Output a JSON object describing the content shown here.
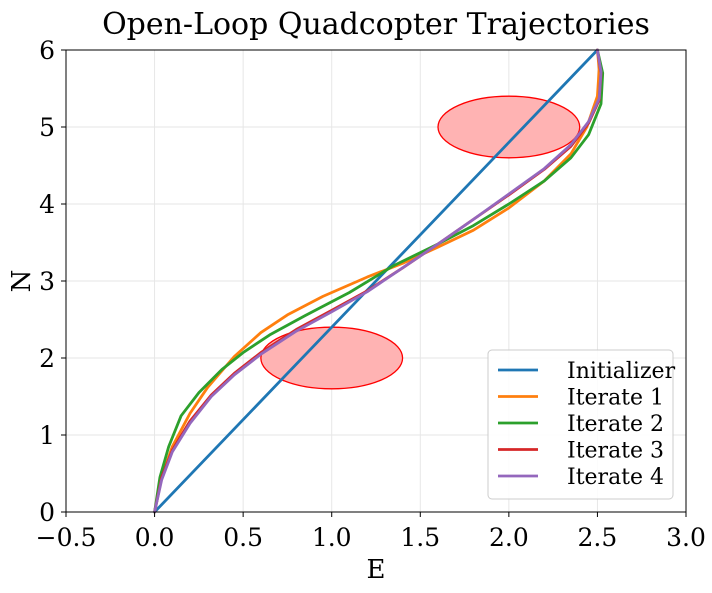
{
  "chart_data": {
    "type": "line",
    "title": "Open-Loop Quadcopter Trajectories",
    "xlabel": "E",
    "ylabel": "N",
    "xlim": [
      -0.5,
      3.0
    ],
    "ylim": [
      0,
      6
    ],
    "xticks": [
      "−0.5",
      "0.0",
      "0.5",
      "1.0",
      "1.5",
      "2.0",
      "2.5",
      "3.0"
    ],
    "xtick_values": [
      -0.5,
      0.0,
      0.5,
      1.0,
      1.5,
      2.0,
      2.5,
      3.0
    ],
    "yticks": [
      "0",
      "1",
      "2",
      "3",
      "4",
      "5",
      "6"
    ],
    "ytick_values": [
      0,
      1,
      2,
      3,
      4,
      5,
      6
    ],
    "grid": true,
    "legend_position": "lower-right",
    "obstacles": [
      {
        "cx": 1.0,
        "cy": 2.0,
        "rx": 0.4,
        "ry": 0.4,
        "fill": "#ffb3b3",
        "stroke": "#ff0000"
      },
      {
        "cx": 2.0,
        "cy": 5.0,
        "rx": 0.4,
        "ry": 0.4,
        "fill": "#ffb3b3",
        "stroke": "#ff0000"
      }
    ],
    "series": [
      {
        "name": "Initializer",
        "color": "#1f77b4",
        "x": [
          0.0,
          2.5
        ],
        "y": [
          0.0,
          6.0
        ]
      },
      {
        "name": "Iterate 1",
        "color": "#ff7f0e",
        "x": [
          0.0,
          0.04,
          0.1,
          0.2,
          0.3,
          0.45,
          0.6,
          0.75,
          0.95,
          1.2,
          1.4,
          1.6,
          1.8,
          2.0,
          2.2,
          2.35,
          2.44,
          2.5,
          2.51,
          2.5
        ],
        "y": [
          0.0,
          0.45,
          0.85,
          1.28,
          1.62,
          2.02,
          2.33,
          2.56,
          2.8,
          3.05,
          3.23,
          3.44,
          3.66,
          3.95,
          4.3,
          4.65,
          5.0,
          5.4,
          5.75,
          6.0
        ]
      },
      {
        "name": "Iterate 2",
        "color": "#2ca02c",
        "x": [
          0.0,
          0.03,
          0.08,
          0.15,
          0.25,
          0.38,
          0.5,
          0.65,
          0.85,
          1.1,
          1.35,
          1.6,
          1.8,
          2.0,
          2.2,
          2.35,
          2.45,
          2.52,
          2.53,
          2.5
        ],
        "y": [
          0.0,
          0.45,
          0.85,
          1.25,
          1.55,
          1.85,
          2.07,
          2.3,
          2.55,
          2.85,
          3.2,
          3.48,
          3.72,
          4.0,
          4.3,
          4.6,
          4.9,
          5.3,
          5.7,
          6.0
        ]
      },
      {
        "name": "Iterate 3",
        "color": "#d62728",
        "x": [
          0.0,
          0.04,
          0.1,
          0.2,
          0.32,
          0.45,
          0.6,
          0.8,
          1.0,
          1.2,
          1.4,
          1.6,
          1.8,
          2.0,
          2.2,
          2.35,
          2.45,
          2.51,
          2.52,
          2.5
        ],
        "y": [
          0.0,
          0.45,
          0.8,
          1.18,
          1.52,
          1.8,
          2.07,
          2.37,
          2.62,
          2.87,
          3.17,
          3.48,
          3.8,
          4.12,
          4.45,
          4.75,
          5.05,
          5.35,
          5.7,
          6.0
        ]
      },
      {
        "name": "Iterate 4",
        "color": "#9467bd",
        "x": [
          0.0,
          0.04,
          0.1,
          0.2,
          0.32,
          0.45,
          0.6,
          0.8,
          1.0,
          1.2,
          1.4,
          1.6,
          1.8,
          2.0,
          2.2,
          2.35,
          2.45,
          2.51,
          2.52,
          2.5
        ],
        "y": [
          0.0,
          0.42,
          0.78,
          1.15,
          1.5,
          1.78,
          2.05,
          2.35,
          2.6,
          2.86,
          3.17,
          3.48,
          3.8,
          4.13,
          4.46,
          4.77,
          5.07,
          5.37,
          5.72,
          6.0
        ]
      }
    ]
  }
}
